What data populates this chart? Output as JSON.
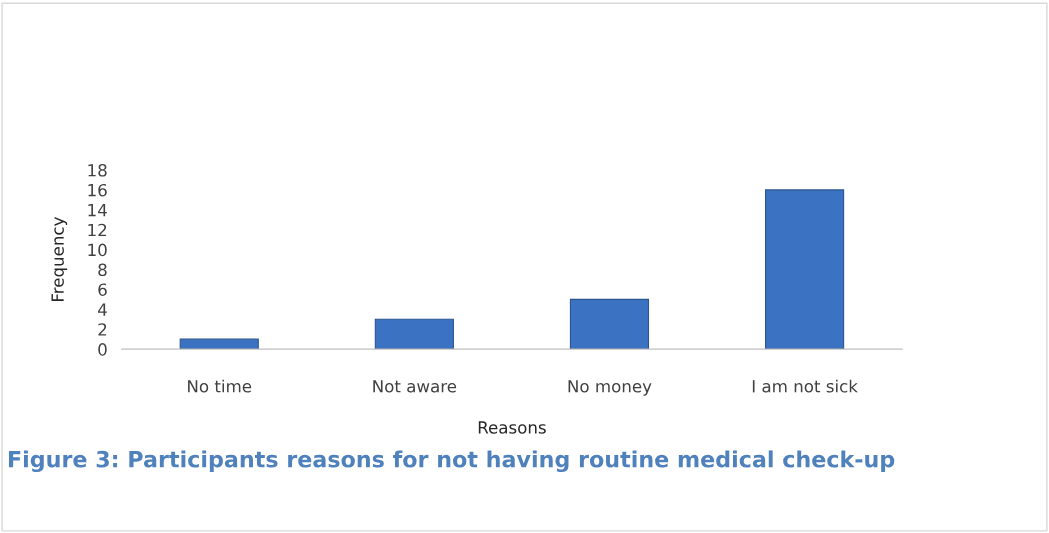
{
  "chart_data": {
    "type": "bar",
    "title": "Figure 3: Participants reasons for not having routine medical check-up",
    "xlabel": "Reasons",
    "ylabel": "Frequency",
    "categories": [
      "No time",
      "Not aware",
      "No money",
      "I am not sick"
    ],
    "values": [
      1,
      3,
      5,
      16
    ],
    "color": "#3b72c2",
    "ylim": [
      0,
      18
    ],
    "yticks": [
      0,
      2,
      4,
      6,
      8,
      10,
      12,
      14,
      16,
      18
    ],
    "grid": false,
    "legend": false
  }
}
